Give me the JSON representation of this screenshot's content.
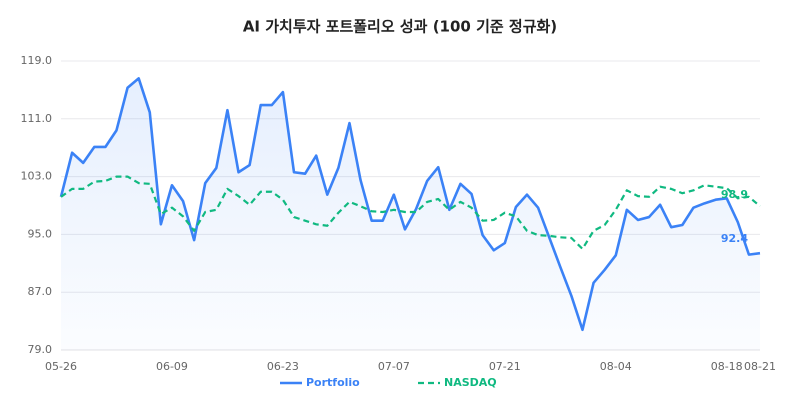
{
  "chart_data": {
    "type": "line",
    "title": "AI 가치투자 포트폴리오 성과 (100 기준 정규화)",
    "categories": [
      "05-26",
      null,
      null,
      null,
      null,
      null,
      null,
      null,
      null,
      null,
      "06-09",
      null,
      null,
      null,
      null,
      null,
      null,
      null,
      null,
      null,
      "06-23",
      null,
      null,
      null,
      null,
      null,
      null,
      null,
      null,
      null,
      "07-07",
      null,
      null,
      null,
      null,
      null,
      null,
      null,
      null,
      null,
      "07-21",
      null,
      null,
      null,
      null,
      null,
      null,
      null,
      null,
      null,
      "08-04",
      null,
      null,
      null,
      null,
      null,
      null,
      null,
      null,
      null,
      "08-18",
      null,
      null,
      "08-21"
    ],
    "series": [
      {
        "name": "Portfolio",
        "color": "#3b82f6",
        "dashed": false,
        "area": true,
        "values": [
          100.2,
          106.3,
          104.9,
          107.1,
          107.1,
          109.4,
          115.3,
          116.6,
          111.9,
          96.4,
          101.8,
          99.6,
          94.2,
          102.1,
          104.2,
          112.2,
          103.6,
          104.6,
          112.9,
          112.9,
          114.7,
          103.6,
          103.4,
          105.9,
          100.5,
          104.2,
          110.4,
          102.5,
          96.9,
          96.9,
          100.5,
          95.7,
          98.5,
          102.4,
          104.3,
          98.4,
          102.0,
          100.6,
          94.9,
          92.8,
          93.8,
          98.8,
          100.5,
          98.7,
          94.6,
          90.5,
          86.5,
          81.8,
          88.3,
          90.1,
          92.1,
          98.4,
          97.0,
          97.4,
          99.1,
          96.0,
          96.3,
          98.7,
          99.3,
          99.8,
          100.0,
          96.7,
          92.2,
          92.4
        ]
      },
      {
        "name": "NASDAQ",
        "color": "#10b981",
        "dashed": true,
        "area": false,
        "values": [
          100.2,
          101.3,
          101.3,
          102.3,
          102.4,
          103.0,
          103.0,
          102.1,
          102.0,
          97.8,
          98.7,
          97.5,
          95.5,
          98.1,
          98.4,
          101.3,
          100.3,
          99.1,
          100.9,
          100.9,
          99.8,
          97.4,
          96.9,
          96.4,
          96.2,
          98.0,
          99.5,
          98.9,
          98.2,
          98.1,
          98.4,
          98.1,
          98.1,
          99.5,
          99.9,
          98.4,
          99.5,
          98.7,
          96.9,
          97.0,
          98.0,
          97.5,
          95.5,
          94.9,
          94.8,
          94.6,
          94.5,
          93.0,
          95.5,
          96.3,
          98.4,
          101.1,
          100.3,
          100.2,
          101.6,
          101.3,
          100.7,
          101.1,
          101.8,
          101.6,
          101.4,
          100.0,
          100.2,
          98.9
        ]
      }
    ],
    "ylim": [
      79,
      119
    ],
    "yticks": [
      {
        "value": 79,
        "label": "79.0"
      },
      {
        "value": 87,
        "label": "87.0"
      },
      {
        "value": 95,
        "label": "95.0"
      },
      {
        "value": 103,
        "label": "103.0"
      },
      {
        "value": 111,
        "label": "111.0"
      },
      {
        "value": 119,
        "label": "119.0"
      }
    ],
    "grid": true,
    "legend": "bottom"
  }
}
